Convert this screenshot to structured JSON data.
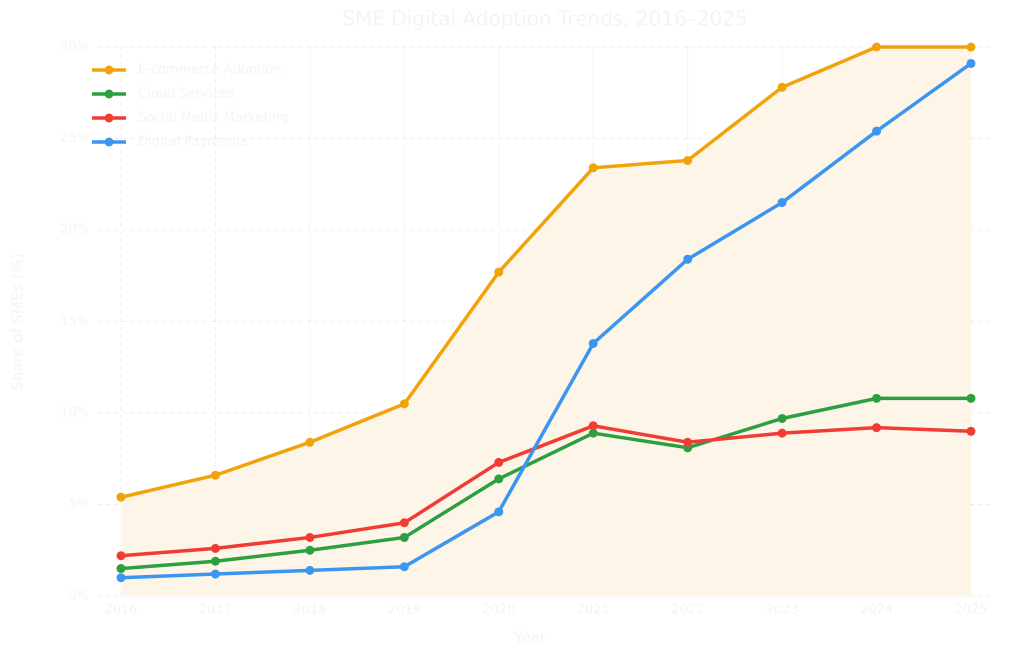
{
  "chart_data": {
    "type": "line",
    "title": "SME Digital Adoption Trends, 2016–2025",
    "x_label": "Year",
    "y_label": "Share of SMEs (%)",
    "categories": [
      "2016",
      "2017",
      "2018",
      "2019",
      "2020",
      "2021",
      "2022",
      "2023",
      "2024",
      "2025"
    ],
    "series": [
      {
        "name": "E-commerce Adoption",
        "color": "#f0a30a",
        "fill": "#fdf5e8",
        "values": [
          5.4,
          6.6,
          8.4,
          10.5,
          17.7,
          23.4,
          23.8,
          27.8,
          30,
          30
        ]
      },
      {
        "name": "Cloud Services",
        "color": "#2ca040",
        "values": [
          1.5,
          1.9,
          2.5,
          3.2,
          6.4,
          8.9,
          8.1,
          9.7,
          10.8,
          10.8
        ]
      },
      {
        "name": "Social Media Marketing",
        "color": "#f03c32",
        "values": [
          2.2,
          2.6,
          3.2,
          4.0,
          7.3,
          9.3,
          8.4,
          8.9,
          9.2,
          9.0
        ]
      },
      {
        "name": "Digital Payments",
        "color": "#3a96f0",
        "values": [
          1.0,
          1.2,
          1.4,
          1.6,
          4.6,
          13.8,
          18.4,
          21.5,
          25.4,
          29.1
        ]
      }
    ],
    "ylim": [
      0,
      30
    ],
    "yticks": [
      {
        "value": 0,
        "label": "0%"
      },
      {
        "value": 5,
        "label": "5%"
      },
      {
        "value": 10,
        "label": "10%"
      },
      {
        "value": 15,
        "label": "15%"
      },
      {
        "value": 20,
        "label": "20%"
      },
      {
        "value": 25,
        "label": "25%"
      },
      {
        "value": 30,
        "label": "30%"
      }
    ],
    "grid": true,
    "legend": "upper-left"
  }
}
